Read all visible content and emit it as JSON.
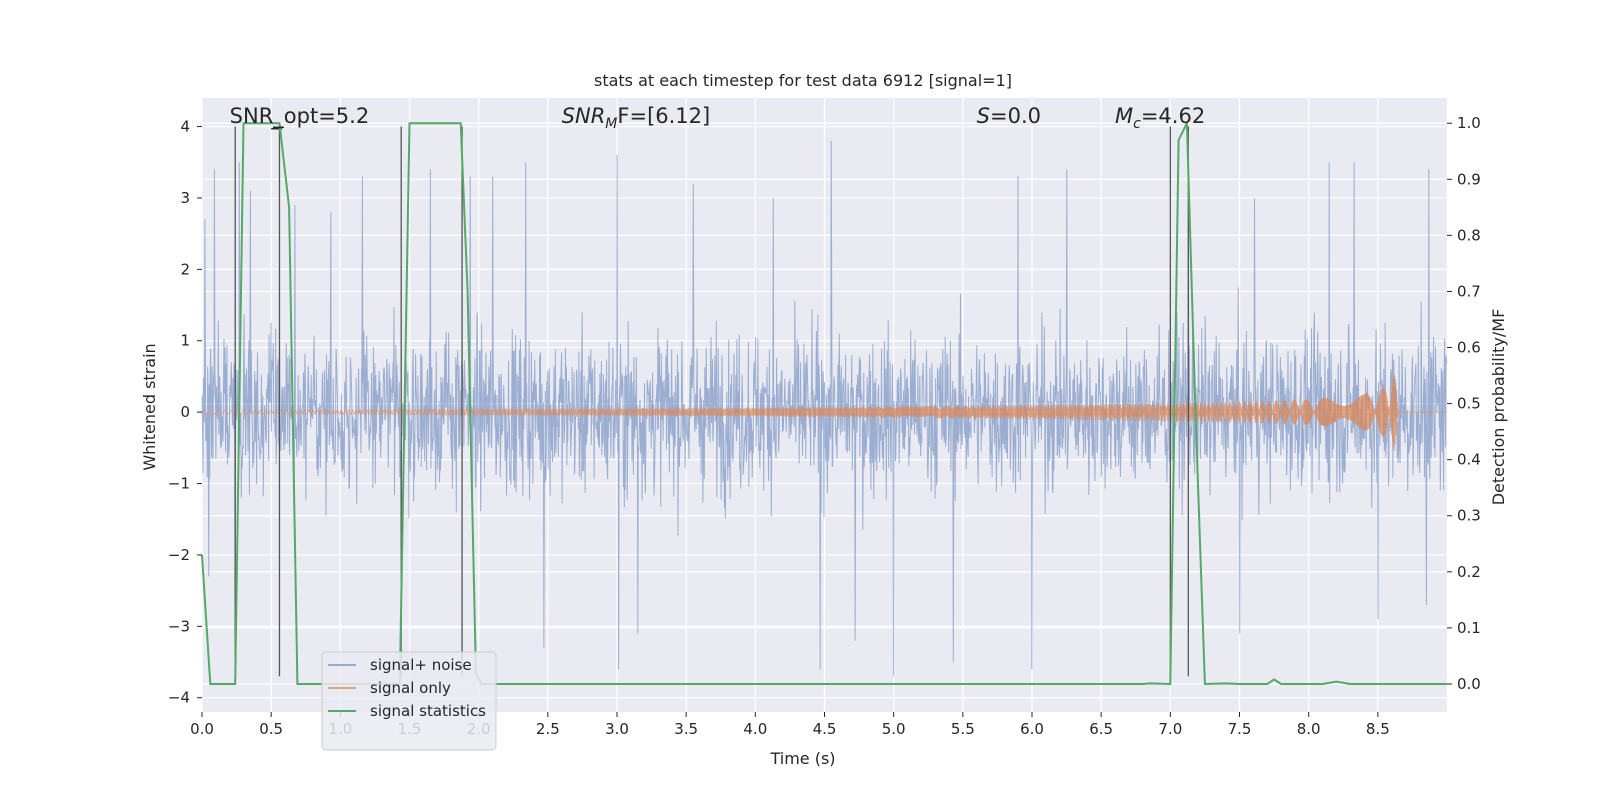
{
  "chart_data": {
    "type": "line",
    "title": "stats at each timestep for test data 6912 [signal=1]",
    "xlabel": "Time (s)",
    "ylabel_left": "Whitened strain",
    "ylabel_right": "Detection probability/MF",
    "xlim": [
      0.0,
      9.0
    ],
    "ylim_left": [
      -4.2,
      4.4
    ],
    "ylim_right": [
      -0.05,
      1.045
    ],
    "xticks": [
      0.0,
      0.5,
      1.0,
      1.5,
      2.0,
      2.5,
      3.0,
      3.5,
      4.0,
      4.5,
      5.0,
      5.5,
      6.0,
      6.5,
      7.0,
      7.5,
      8.0,
      8.5
    ],
    "xtick_labels": [
      "0.0",
      "0.5",
      "1.0",
      "1.5",
      "2.0",
      "2.5",
      "3.0",
      "3.5",
      "4.0",
      "4.5",
      "5.0",
      "5.5",
      "6.0",
      "6.5",
      "7.0",
      "7.5",
      "8.0",
      "8.5"
    ],
    "yticks_left": [
      4,
      3,
      2,
      1,
      0,
      -1,
      -2,
      -3,
      -4
    ],
    "yticks_left_labels": [
      "4",
      "3",
      "2",
      "1",
      "0",
      "−1",
      "−2",
      "−3",
      "−4"
    ],
    "yticks_right": [
      1.0,
      0.9,
      0.8,
      0.7,
      0.6,
      0.5,
      0.4,
      0.3,
      0.2,
      0.1,
      0.0
    ],
    "yticks_right_labels": [
      "1.0",
      "0.9",
      "0.8",
      "0.7",
      "0.6",
      "0.5",
      "0.4",
      "0.3",
      "0.2",
      "0.1",
      "0.0"
    ],
    "grid": true,
    "legend_position": "lower-left",
    "annotations": [
      {
        "prefix": "SNR_opt=5.2",
        "sym": "",
        "sub": "",
        "suffix": "",
        "x": 0.2,
        "y": 4.05
      },
      {
        "prefix": "",
        "sym": "SNR",
        "sub": "M",
        "suffix": "F=[6.12]",
        "x": 2.6,
        "y": 4.05
      },
      {
        "prefix": "",
        "sym": "S",
        "sub": "",
        "suffix": "=0.0",
        "x": 5.6,
        "y": 4.05
      },
      {
        "prefix": "",
        "sym": "M",
        "sub": "c",
        "suffix": "=4.62",
        "x": 6.6,
        "y": 4.05
      }
    ],
    "series": [
      {
        "name": "signal+ noise",
        "color": "#4c72b0",
        "description_envelope": {
          "x_range": [
            0.0,
            9.0
          ],
          "typical_abs_amplitude": 1.4,
          "peak_values": [
            {
              "x": 0.02,
              "y": 2.7
            },
            {
              "x": 0.09,
              "y": 3.4
            },
            {
              "x": 0.27,
              "y": 3.5
            },
            {
              "x": 0.35,
              "y": 3.1
            },
            {
              "x": 0.67,
              "y": 2.9
            },
            {
              "x": 0.93,
              "y": 2.8
            },
            {
              "x": 1.16,
              "y": 3.3
            },
            {
              "x": 1.65,
              "y": 3.4
            },
            {
              "x": 1.94,
              "y": 3.3
            },
            {
              "x": 2.1,
              "y": 3.3
            },
            {
              "x": 2.34,
              "y": 3.5
            },
            {
              "x": 3.0,
              "y": 3.6
            },
            {
              "x": 3.55,
              "y": 3.2
            },
            {
              "x": 4.13,
              "y": 3.0
            },
            {
              "x": 4.55,
              "y": 3.8
            },
            {
              "x": 5.9,
              "y": 3.3
            },
            {
              "x": 6.25,
              "y": 3.4
            },
            {
              "x": 7.13,
              "y": 3.5
            },
            {
              "x": 7.61,
              "y": 3.0
            },
            {
              "x": 8.15,
              "y": 3.5
            },
            {
              "x": 8.33,
              "y": 3.5
            },
            {
              "x": 8.87,
              "y": 3.4
            }
          ],
          "trough_values": [
            {
              "x": 0.05,
              "y": -2.3
            },
            {
              "x": 0.24,
              "y": -2.7
            },
            {
              "x": 1.44,
              "y": -2.5
            },
            {
              "x": 2.47,
              "y": -3.3
            },
            {
              "x": 3.01,
              "y": -3.6
            },
            {
              "x": 3.15,
              "y": -3.1
            },
            {
              "x": 4.47,
              "y": -3.6
            },
            {
              "x": 4.72,
              "y": -3.2
            },
            {
              "x": 5.0,
              "y": -3.7
            },
            {
              "x": 5.43,
              "y": -3.5
            },
            {
              "x": 6.0,
              "y": -3.6
            },
            {
              "x": 7.5,
              "y": -3.1
            },
            {
              "x": 8.5,
              "y": -2.9
            },
            {
              "x": 8.85,
              "y": -2.7
            }
          ]
        }
      },
      {
        "name": "signal only",
        "color": "#dd8452",
        "envelope": [
          {
            "x": 0.0,
            "a": 0.02
          },
          {
            "x": 1.0,
            "a": 0.025
          },
          {
            "x": 2.0,
            "a": 0.04
          },
          {
            "x": 3.0,
            "a": 0.05
          },
          {
            "x": 4.0,
            "a": 0.06
          },
          {
            "x": 5.0,
            "a": 0.08
          },
          {
            "x": 6.0,
            "a": 0.1
          },
          {
            "x": 7.0,
            "a": 0.13
          },
          {
            "x": 7.5,
            "a": 0.15
          },
          {
            "x": 8.0,
            "a": 0.18
          },
          {
            "x": 8.4,
            "a": 0.25
          },
          {
            "x": 8.55,
            "a": 0.35
          },
          {
            "x": 8.62,
            "a": 0.55
          },
          {
            "x": 8.65,
            "a": 0.0
          },
          {
            "x": 9.0,
            "a": 0.0
          }
        ]
      },
      {
        "name": "signal statistics",
        "color": "#55a868",
        "axis": "right",
        "points": [
          [
            0.0,
            0.23
          ],
          [
            0.06,
            0.0
          ],
          [
            0.18,
            0.0
          ],
          [
            0.24,
            0.0
          ],
          [
            0.3,
            1.0
          ],
          [
            0.37,
            1.0
          ],
          [
            0.56,
            1.0
          ],
          [
            0.63,
            0.85
          ],
          [
            0.69,
            0.0
          ],
          [
            1.43,
            0.0
          ],
          [
            1.5,
            1.0
          ],
          [
            1.57,
            1.0
          ],
          [
            1.87,
            1.0
          ],
          [
            1.92,
            0.7
          ],
          [
            1.98,
            0.02
          ],
          [
            2.02,
            0.0
          ],
          [
            6.8,
            0.0
          ],
          [
            6.85,
            0.001
          ],
          [
            7.0,
            0.0
          ],
          [
            7.06,
            0.97
          ],
          [
            7.12,
            1.0
          ],
          [
            7.18,
            0.5
          ],
          [
            7.25,
            0.0
          ],
          [
            7.4,
            0.001
          ],
          [
            7.5,
            0.0
          ],
          [
            7.7,
            0.0
          ],
          [
            7.75,
            0.008
          ],
          [
            7.8,
            0.0
          ],
          [
            8.1,
            0.0
          ],
          [
            8.2,
            0.004
          ],
          [
            8.3,
            0.0
          ],
          [
            9.0,
            0.0
          ]
        ]
      }
    ],
    "vertical_markers": [
      {
        "x": 0.24,
        "y_top": 4.0,
        "y_bottom": -3.7
      },
      {
        "x": 0.56,
        "y_top": 4.0,
        "y_bottom": -3.7
      },
      {
        "x": 1.44,
        "y_top": 4.0,
        "y_bottom": -3.7
      },
      {
        "x": 1.88,
        "y_top": 4.0,
        "y_bottom": -3.7
      },
      {
        "x": 7.0,
        "y_top": 4.0,
        "y_bottom": -3.7
      },
      {
        "x": 7.13,
        "y_top": 4.0,
        "y_bottom": -3.7
      }
    ],
    "horizontal_marker": {
      "x_start": 0.5,
      "x_end": 0.58,
      "y": 3.97
    }
  }
}
